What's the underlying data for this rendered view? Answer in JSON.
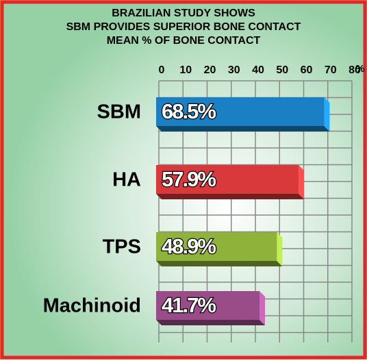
{
  "chart_data": {
    "type": "bar",
    "orientation": "horizontal",
    "title": [
      "BRAZILIAN STUDY SHOWS",
      "SBM PROVIDES SUPERIOR BONE CONTACT",
      "MEAN % OF BONE CONTACT"
    ],
    "xaxis_label": "%",
    "categories": [
      "SBM",
      "HA",
      "TPS",
      "Machinoid"
    ],
    "values": [
      68.5,
      57.9,
      48.9,
      41.7
    ],
    "value_labels": [
      "68.5%",
      "57.9%",
      "48.9%",
      "41.7%"
    ],
    "colors": [
      "#1b7fc3",
      "#d9393b",
      "#8fb23b",
      "#9a4c89"
    ],
    "xlim": [
      0,
      80
    ],
    "xticks": [
      0,
      10,
      20,
      30,
      40,
      50,
      60,
      70,
      80
    ],
    "grid": true
  }
}
